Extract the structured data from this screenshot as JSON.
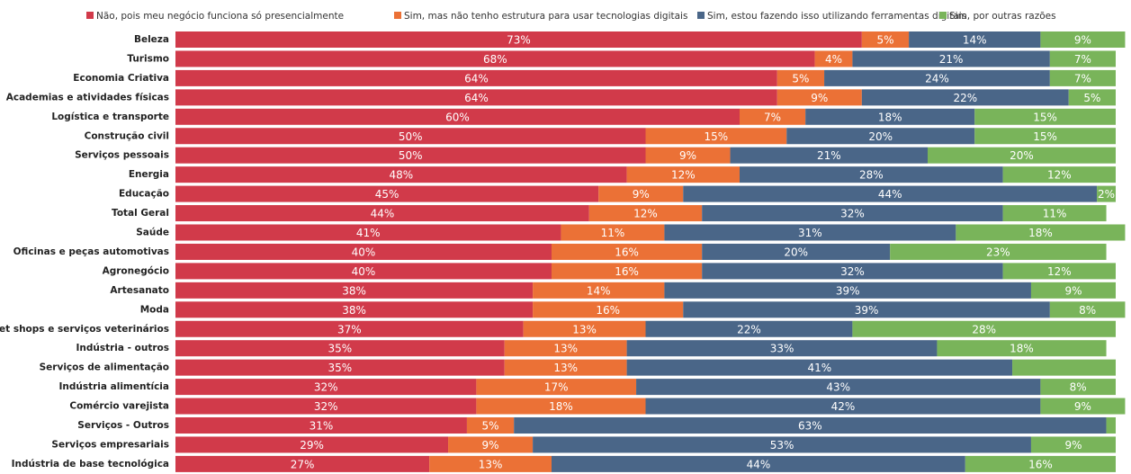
{
  "chart_data": {
    "type": "stacked-bar-horizontal",
    "categories": [
      "Beleza",
      "Turismo",
      "Economia Criativa",
      "Academias e atividades físicas",
      "Logística e transporte",
      "Construção civil",
      "Serviços pessoais",
      "Energia",
      "Educação",
      "Total Geral",
      "Saúde",
      "Oficinas e peças automotivas",
      "Agronegócio",
      "Artesanato",
      "Moda",
      "Pet shops e serviços veterinários",
      "Indústria - outros",
      "Serviços de alimentação",
      "Indústria alimentícia",
      "Comércio varejista",
      "Serviços - Outros",
      "Serviços empresariais",
      "Indústria de base tecnológica"
    ],
    "series": [
      {
        "name": "Não, pois meu negócio funciona só presencialmente",
        "color": "#d13a4a",
        "values": [
          73,
          68,
          64,
          64,
          60,
          50,
          50,
          48,
          45,
          44,
          41,
          40,
          40,
          38,
          38,
          37,
          35,
          35,
          32,
          32,
          31,
          29,
          27
        ],
        "value_labels": [
          "73%",
          "68%",
          "64%",
          "64%",
          "60%",
          "50%",
          "50%",
          "48%",
          "45%",
          "44%",
          "41%",
          "40%",
          "40%",
          "38%",
          "38%",
          "37%",
          "35%",
          "35%",
          "32%",
          "32%",
          "31%",
          "29%",
          "27%"
        ]
      },
      {
        "name": "Sim, mas não tenho estrutura para usar tecnologias digitais",
        "color": "#eb7136",
        "values": [
          5,
          4,
          5,
          9,
          7,
          15,
          9,
          12,
          9,
          12,
          11,
          16,
          16,
          14,
          16,
          13,
          13,
          13,
          17,
          18,
          5,
          9,
          13
        ],
        "value_labels": [
          "5%",
          "4%",
          "5%",
          "9%",
          "7%",
          "15%",
          "9%",
          "12%",
          "9%",
          "12%",
          "11%",
          "16%",
          "16%",
          "14%",
          "16%",
          "13%",
          "13%",
          "13%",
          "17%",
          "18%",
          "5%",
          "9%",
          "13%"
        ]
      },
      {
        "name": "Sim, estou fazendo isso utilizando ferramentas digitais",
        "color": "#4a6688",
        "values": [
          14,
          21,
          24,
          22,
          18,
          20,
          21,
          28,
          44,
          32,
          31,
          20,
          32,
          39,
          39,
          22,
          33,
          41,
          43,
          42,
          63,
          53,
          44
        ],
        "value_labels": [
          "14%",
          "21%",
          "24%",
          "22%",
          "18%",
          "20%",
          "21%",
          "28%",
          "44%",
          "32%",
          "31%",
          "20%",
          "32%",
          "39%",
          "39%",
          "22%",
          "33%",
          "41%",
          "43%",
          "42%",
          "63%",
          "53%",
          "44%"
        ]
      },
      {
        "name": "Sim, por outras razões",
        "color": "#79b45a",
        "values": [
          9,
          7,
          7,
          5,
          15,
          15,
          20,
          12,
          2,
          11,
          18,
          23,
          12,
          9,
          8,
          28,
          18,
          11,
          8,
          9,
          1,
          9,
          16
        ],
        "value_labels": [
          "9%",
          "7%",
          "7%",
          "5%",
          "15%",
          "15%",
          "20%",
          "12%",
          "2%",
          "11%",
          "18%",
          "23%",
          "12%",
          "9%",
          "8%",
          "28%",
          "18%",
          null,
          "8%",
          "9%",
          null,
          "9%",
          "16%"
        ]
      }
    ]
  }
}
